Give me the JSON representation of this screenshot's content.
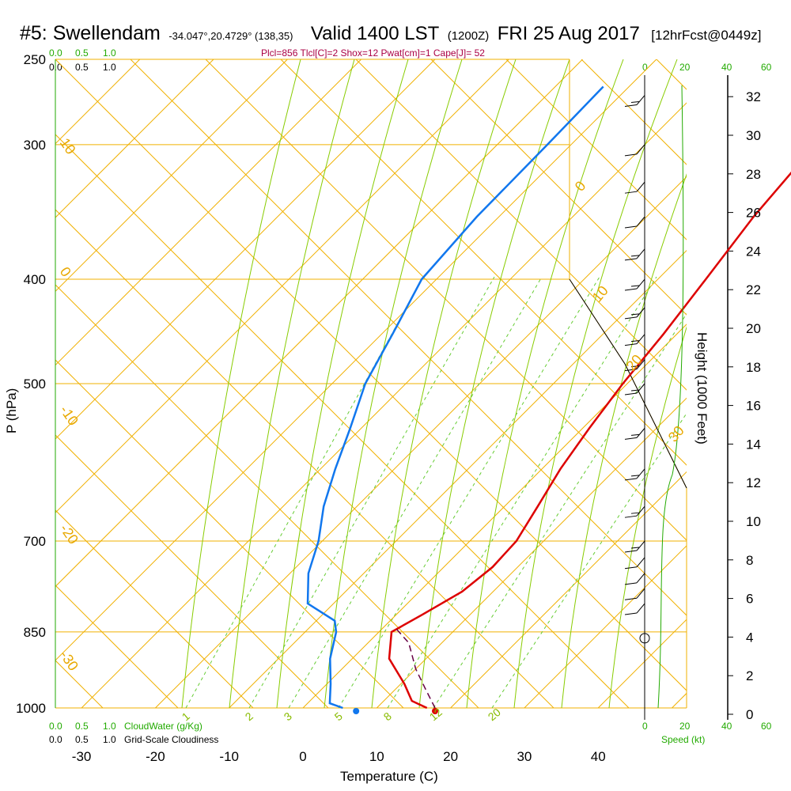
{
  "title": {
    "station": "#5: Swellendam",
    "coords": "-34.047°,20.4729° (138,35)",
    "valid": "Valid 1400 LST",
    "z": "(1200Z)",
    "date": "FRI 25 Aug 2017",
    "fcst": "[12hrFcst@0449z]"
  },
  "params_line": "Plcl=856 Tlcl[C]=2 Shox=12 Pwat[cm]=1 Cape[J]= 52",
  "cloudwater_labels": [
    "0.0",
    "0.5",
    "1.0"
  ],
  "cloudiness_labels": [
    "0.0",
    "0.5",
    "1.0"
  ],
  "cloudwater_title": "CloudWater (g/Kg)",
  "cloudiness_title": "Grid-Scale Cloudiness",
  "speed_title": "Speed (kt)",
  "speed_ticks": [
    "0",
    "20",
    "40",
    "60"
  ],
  "height_title": "Height (1000 Feet)",
  "colors": {
    "temperature": "#dd0000",
    "dewpoint": "#1177ee",
    "parcel": "#660044",
    "isotherm": "#f0b000",
    "dry_adiabat": "#88cc00",
    "mixing_ratio": "#66cc33",
    "cloudwater": "#22aa00"
  },
  "chart_data": {
    "type": "line",
    "title": "#5: Swellendam",
    "xlabel": "Temperature (C)",
    "ylabel": "P (hPa)",
    "x_ticks": [
      -30,
      -20,
      -10,
      0,
      10,
      20,
      30,
      40
    ],
    "y_ticks": [
      250,
      300,
      400,
      500,
      700,
      850,
      1000
    ],
    "height_ticks": [
      0,
      2,
      4,
      6,
      8,
      10,
      12,
      14,
      16,
      18,
      20,
      22,
      24,
      26,
      28,
      30,
      32
    ],
    "isotherm_labels": [
      "0",
      "10",
      "20",
      "30",
      "-10",
      "-20",
      "-30",
      "10",
      "0"
    ],
    "mixing_ratio_labels": [
      "1",
      "2",
      "3",
      "5",
      "8",
      "12",
      "20"
    ],
    "series": [
      {
        "name": "Temperature",
        "points": [
          [
            -7.5,
            265
          ],
          [
            -6.9,
            300
          ],
          [
            -5.5,
            350
          ],
          [
            -3.5,
            400
          ],
          [
            -1.8,
            450
          ],
          [
            -0.6,
            500
          ],
          [
            0.9,
            550
          ],
          [
            2.5,
            600
          ],
          [
            4.5,
            650
          ],
          [
            6.3,
            700
          ],
          [
            6.6,
            740
          ],
          [
            5.8,
            780
          ],
          [
            3.5,
            820
          ],
          [
            1.7,
            850
          ],
          [
            5.0,
            900
          ],
          [
            10.5,
            950
          ],
          [
            13.8,
            985
          ],
          [
            16.8,
            1000
          ]
        ]
      },
      {
        "name": "Dewpoint",
        "points": [
          [
            -43.5,
            265
          ],
          [
            -43.2,
            300
          ],
          [
            -43.0,
            350
          ],
          [
            -42.0,
            400
          ],
          [
            -38.5,
            450
          ],
          [
            -35.5,
            500
          ],
          [
            -31.5,
            550
          ],
          [
            -28.0,
            600
          ],
          [
            -24.5,
            650
          ],
          [
            -20.5,
            700
          ],
          [
            -17.5,
            750
          ],
          [
            -13.5,
            800
          ],
          [
            -7.5,
            830
          ],
          [
            -5.8,
            850
          ],
          [
            -3.0,
            900
          ],
          [
            0.5,
            950
          ],
          [
            3.0,
            990
          ],
          [
            5.4,
            1000
          ]
        ]
      },
      {
        "name": "Parcel",
        "points": [
          [
            17.9,
            1000
          ],
          [
            14.0,
            960
          ],
          [
            10.0,
            920
          ],
          [
            5.5,
            870
          ],
          [
            2.0,
            845
          ]
        ]
      }
    ],
    "surface_temperature": 17.9,
    "surface_dewpoint": 7.2,
    "winds": [
      {
        "p": 270,
        "speed_kt": 15
      },
      {
        "p": 300,
        "speed_kt": 10
      },
      {
        "p": 325,
        "speed_kt": 10
      },
      {
        "p": 350,
        "speed_kt": 10
      },
      {
        "p": 375,
        "speed_kt": 15
      },
      {
        "p": 400,
        "speed_kt": 15
      },
      {
        "p": 425,
        "speed_kt": 15
      },
      {
        "p": 450,
        "speed_kt": 15
      },
      {
        "p": 475,
        "speed_kt": 15
      },
      {
        "p": 500,
        "speed_kt": 15
      },
      {
        "p": 550,
        "speed_kt": 15
      },
      {
        "p": 600,
        "speed_kt": 15
      },
      {
        "p": 650,
        "speed_kt": 15
      },
      {
        "p": 700,
        "speed_kt": 15
      },
      {
        "p": 725,
        "speed_kt": 10
      },
      {
        "p": 750,
        "speed_kt": 10
      },
      {
        "p": 775,
        "speed_kt": 10
      },
      {
        "p": 800,
        "speed_kt": 10
      }
    ]
  }
}
